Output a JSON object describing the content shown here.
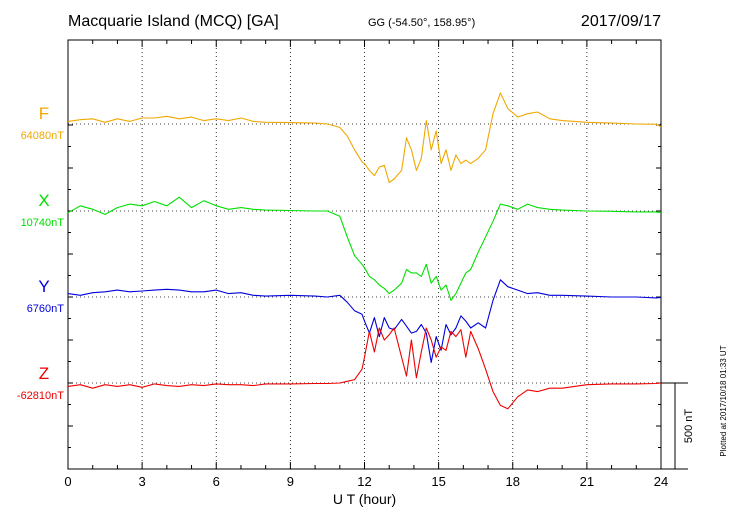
{
  "header": {
    "station": "Macquarie Island (MCQ)  [GA]",
    "coords": "GG (-54.50°, 158.95°)",
    "date": "2017/09/17"
  },
  "plotted_note": "Plotted at 2017/10/18 01:33 UT",
  "scale_bar_label": "500 nT",
  "chart_data": {
    "type": "line",
    "xlabel": "U T (hour)",
    "xlim": [
      0,
      24
    ],
    "xticks": [
      "0",
      "3",
      "6",
      "9",
      "12",
      "15",
      "18",
      "21",
      "24"
    ],
    "scale_bar_nT": 500,
    "grid": "dotted",
    "series": [
      {
        "name": "F",
        "baseline": "64080nT",
        "color": "#f0a800",
        "t": [
          0,
          0.5,
          1,
          1.5,
          2,
          2.5,
          3,
          3.5,
          4,
          4.5,
          5,
          5.5,
          6,
          6.5,
          7,
          7.5,
          8,
          9,
          10,
          10.5,
          11,
          11.3,
          11.6,
          11.9,
          12,
          12.2,
          12.4,
          12.6,
          12.8,
          13,
          13.2,
          13.5,
          13.7,
          13.9,
          14.1,
          14.3,
          14.5,
          14.7,
          14.9,
          15.1,
          15.3,
          15.5,
          15.7,
          15.9,
          16.1,
          16.3,
          16.6,
          16.9,
          17.2,
          17.5,
          17.8,
          18.2,
          18.6,
          19,
          19.5,
          20,
          21,
          22,
          23,
          23.8,
          24
        ],
        "v": [
          15,
          25,
          30,
          10,
          30,
          15,
          35,
          35,
          45,
          30,
          40,
          20,
          30,
          20,
          35,
          15,
          10,
          8,
          5,
          0,
          -20,
          -70,
          -150,
          -220,
          -230,
          -270,
          -300,
          -250,
          -240,
          -340,
          -320,
          -270,
          -80,
          -150,
          -270,
          -200,
          20,
          -150,
          -40,
          -230,
          -150,
          -270,
          -180,
          -230,
          -210,
          -230,
          -200,
          -150,
          60,
          180,
          90,
          40,
          60,
          70,
          30,
          20,
          10,
          5,
          0,
          -2,
          -15
        ]
      },
      {
        "name": "X",
        "baseline": "10740nT",
        "color": "#00e000",
        "t": [
          0,
          0.5,
          1,
          1.5,
          2,
          2.5,
          3,
          3.5,
          4,
          4.5,
          5,
          5.5,
          6,
          6.5,
          7,
          7.5,
          8,
          9,
          10,
          10.5,
          11,
          11.3,
          11.6,
          11.9,
          12,
          12.2,
          12.4,
          12.6,
          12.8,
          13,
          13.2,
          13.5,
          13.7,
          13.9,
          14.1,
          14.3,
          14.5,
          14.7,
          14.9,
          15.1,
          15.3,
          15.5,
          15.7,
          15.9,
          16.1,
          16.3,
          16.6,
          16.9,
          17.2,
          17.5,
          17.8,
          18.2,
          18.6,
          19,
          19.5,
          20,
          21,
          22,
          23,
          23.8,
          24
        ],
        "v": [
          -10,
          30,
          10,
          -20,
          20,
          40,
          30,
          55,
          30,
          80,
          20,
          60,
          30,
          10,
          20,
          10,
          5,
          3,
          0,
          0,
          -30,
          -150,
          -260,
          -310,
          -330,
          -380,
          -400,
          -430,
          -450,
          -480,
          -460,
          -420,
          -340,
          -360,
          -360,
          -380,
          -310,
          -420,
          -380,
          -460,
          -430,
          -520,
          -480,
          -420,
          -360,
          -340,
          -240,
          -150,
          -60,
          40,
          30,
          10,
          40,
          20,
          10,
          5,
          0,
          -2,
          -5,
          -5,
          -10
        ]
      },
      {
        "name": "Y",
        "baseline": "6760nT",
        "color": "#0000dd",
        "t": [
          0,
          0.5,
          1,
          1.5,
          2,
          2.5,
          3,
          3.5,
          4,
          4.5,
          5,
          5.5,
          6,
          6.5,
          7,
          7.5,
          8,
          9,
          10,
          10.5,
          11,
          11.3,
          11.6,
          11.9,
          12,
          12.2,
          12.4,
          12.6,
          12.8,
          13,
          13.2,
          13.5,
          13.7,
          13.9,
          14.1,
          14.3,
          14.5,
          14.7,
          14.9,
          15.1,
          15.3,
          15.5,
          15.7,
          15.9,
          16.1,
          16.3,
          16.6,
          16.9,
          17.2,
          17.5,
          17.8,
          18.2,
          18.6,
          19,
          19.5,
          20,
          21,
          22,
          23,
          23.8,
          24
        ],
        "v": [
          20,
          10,
          25,
          30,
          40,
          30,
          35,
          40,
          45,
          40,
          30,
          30,
          40,
          20,
          25,
          10,
          5,
          10,
          5,
          0,
          10,
          -30,
          -80,
          -100,
          -140,
          -210,
          -120,
          -230,
          -120,
          -180,
          -190,
          -130,
          -170,
          -210,
          -200,
          -160,
          -210,
          -380,
          -230,
          -310,
          -160,
          -220,
          -180,
          -110,
          -140,
          -180,
          -150,
          -180,
          -20,
          100,
          60,
          40,
          20,
          25,
          10,
          10,
          5,
          0,
          0,
          -5,
          -3
        ]
      },
      {
        "name": "Z",
        "baseline": "-62810nT",
        "color": "#ee0000",
        "t": [
          0,
          0.5,
          1,
          1.5,
          2,
          2.5,
          3,
          3.5,
          4,
          4.5,
          5,
          5.5,
          6,
          6.5,
          7,
          7.5,
          8,
          9,
          10,
          10.5,
          11,
          11.3,
          11.6,
          11.9,
          12,
          12.2,
          12.4,
          12.6,
          12.8,
          13,
          13.2,
          13.5,
          13.7,
          13.9,
          14.1,
          14.3,
          14.5,
          14.7,
          14.9,
          15.1,
          15.3,
          15.5,
          15.7,
          15.9,
          16.1,
          16.3,
          16.6,
          16.9,
          17.2,
          17.5,
          17.8,
          18.2,
          18.6,
          19,
          19.5,
          20,
          21,
          22,
          23,
          23.8,
          24
        ],
        "v": [
          -20,
          -10,
          -30,
          -10,
          -20,
          -10,
          -25,
          -5,
          -15,
          -20,
          -10,
          -15,
          -5,
          -10,
          -10,
          -15,
          -5,
          -5,
          -3,
          -3,
          0,
          10,
          20,
          80,
          150,
          300,
          180,
          320,
          250,
          280,
          320,
          150,
          40,
          250,
          30,
          180,
          320,
          250,
          150,
          210,
          190,
          300,
          270,
          310,
          150,
          300,
          200,
          80,
          -50,
          -130,
          -150,
          -80,
          -40,
          -50,
          -30,
          -30,
          -10,
          -5,
          -5,
          -3,
          0
        ]
      }
    ]
  }
}
